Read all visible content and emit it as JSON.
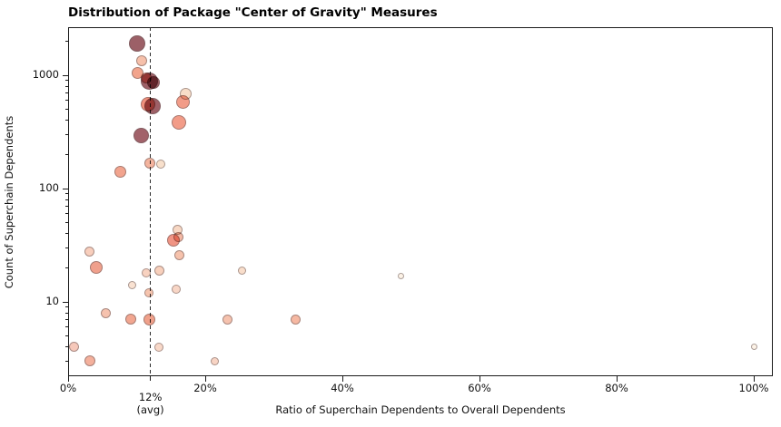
{
  "title": "Distribution of Package \"Center of Gravity\" Measures",
  "chart_data": {
    "type": "scatter",
    "title": "Distribution of Package \"Center of Gravity\" Measures",
    "xlabel": "Ratio of Superchain Dependents to Overall Dependents",
    "ylabel": "Count of Superchain Dependents",
    "x_axis": {
      "unit": "percent",
      "range_pct": [
        0,
        102.8
      ],
      "ticks": [
        {
          "pct": 0,
          "label": "0%"
        },
        {
          "pct": 20,
          "label": "20%"
        },
        {
          "pct": 40,
          "label": "40%"
        },
        {
          "pct": 60,
          "label": "60%"
        },
        {
          "pct": 80,
          "label": "80%"
        },
        {
          "pct": 100,
          "label": "100%"
        }
      ]
    },
    "y_axis": {
      "scale": "log",
      "range": [
        2.2,
        2650
      ],
      "ticks": [
        {
          "value": 10,
          "label": "10"
        },
        {
          "value": 100,
          "label": "100"
        },
        {
          "value": 1000,
          "label": "1000"
        }
      ]
    },
    "avg_line": {
      "pct": 12,
      "label": "12%",
      "sublabel": "(avg)",
      "style": "dashed",
      "color": "#2b2b2b"
    },
    "legend": "none",
    "grid": "off",
    "points": [
      {
        "x_pct": 10.0,
        "count": 1900,
        "r": 9,
        "color": "#9c6067"
      },
      {
        "x_pct": 10.7,
        "count": 1350,
        "r": 6,
        "color": "#f6c0aa"
      },
      {
        "x_pct": 10.1,
        "count": 1050,
        "r": 6.5,
        "color": "#f2a48c"
      },
      {
        "x_pct": 11.4,
        "count": 950,
        "r": 6,
        "color": "#f09080"
      },
      {
        "x_pct": 11.9,
        "count": 890,
        "r": 9.5,
        "color": "#9e6067"
      },
      {
        "x_pct": 12.5,
        "count": 860,
        "r": 7,
        "color": "#9e6067"
      },
      {
        "x_pct": 17.1,
        "count": 680,
        "r": 6.5,
        "color": "#f8ddc8"
      },
      {
        "x_pct": 16.8,
        "count": 580,
        "r": 7.5,
        "color": "#f29c88"
      },
      {
        "x_pct": 11.7,
        "count": 555,
        "r": 8,
        "color": "#f0907c"
      },
      {
        "x_pct": 12.3,
        "count": 530,
        "r": 9,
        "color": "#9e6067"
      },
      {
        "x_pct": 16.2,
        "count": 385,
        "r": 8,
        "color": "#f29c88"
      },
      {
        "x_pct": 10.6,
        "count": 295,
        "r": 8.5,
        "color": "#a2626a"
      },
      {
        "x_pct": 11.9,
        "count": 168,
        "r": 6,
        "color": "#f4b49e"
      },
      {
        "x_pct": 13.5,
        "count": 165,
        "r": 5,
        "color": "#f8e0cc"
      },
      {
        "x_pct": 7.6,
        "count": 140,
        "r": 6.5,
        "color": "#f2a48e"
      },
      {
        "x_pct": 3.1,
        "count": 28,
        "r": 5.5,
        "color": "#f8cebc"
      },
      {
        "x_pct": 4.1,
        "count": 20,
        "r": 7,
        "color": "#f0a08c"
      },
      {
        "x_pct": 5.5,
        "count": 8,
        "r": 5.5,
        "color": "#f6c2ae"
      },
      {
        "x_pct": 0.9,
        "count": 4,
        "r": 5.5,
        "color": "#f6c8ba"
      },
      {
        "x_pct": 3.2,
        "count": 3,
        "r": 6,
        "color": "#f4b09c"
      },
      {
        "x_pct": 9.3,
        "count": 14,
        "r": 4.5,
        "color": "#f9e2d2"
      },
      {
        "x_pct": 9.1,
        "count": 7,
        "r": 6,
        "color": "#f2a690"
      },
      {
        "x_pct": 11.4,
        "count": 18,
        "r": 5,
        "color": "#f8d2c0"
      },
      {
        "x_pct": 11.8,
        "count": 12,
        "r": 5,
        "color": "#f6c4ae"
      },
      {
        "x_pct": 11.9,
        "count": 7,
        "r": 6.5,
        "color": "#f0a08a"
      },
      {
        "x_pct": 13.3,
        "count": 19,
        "r": 5.5,
        "color": "#f8d0bc"
      },
      {
        "x_pct": 13.3,
        "count": 4,
        "r": 5,
        "color": "#f8d8c8"
      },
      {
        "x_pct": 15.3,
        "count": 35,
        "r": 7,
        "color": "#f09484"
      },
      {
        "x_pct": 16.1,
        "count": 37,
        "r": 5.5,
        "color": "#f4b8a4"
      },
      {
        "x_pct": 15.9,
        "count": 43,
        "r": 5.5,
        "color": "#f8d8c4"
      },
      {
        "x_pct": 16.2,
        "count": 26,
        "r": 5.5,
        "color": "#f6c2ac"
      },
      {
        "x_pct": 15.8,
        "count": 13,
        "r": 5,
        "color": "#f8d6c6"
      },
      {
        "x_pct": 21.4,
        "count": 3,
        "r": 4.5,
        "color": "#f8d4c4"
      },
      {
        "x_pct": 23.2,
        "count": 7,
        "r": 5.5,
        "color": "#f6c2ae"
      },
      {
        "x_pct": 25.3,
        "count": 19,
        "r": 4.5,
        "color": "#f9decb"
      },
      {
        "x_pct": 33.2,
        "count": 7,
        "r": 5.5,
        "color": "#f6b8a2"
      },
      {
        "x_pct": 48.5,
        "count": 17,
        "r": 3.5,
        "color": "#fdf3e7"
      },
      {
        "x_pct": 100.0,
        "count": 4,
        "r": 3.5,
        "color": "#fdf3e7"
      }
    ]
  }
}
